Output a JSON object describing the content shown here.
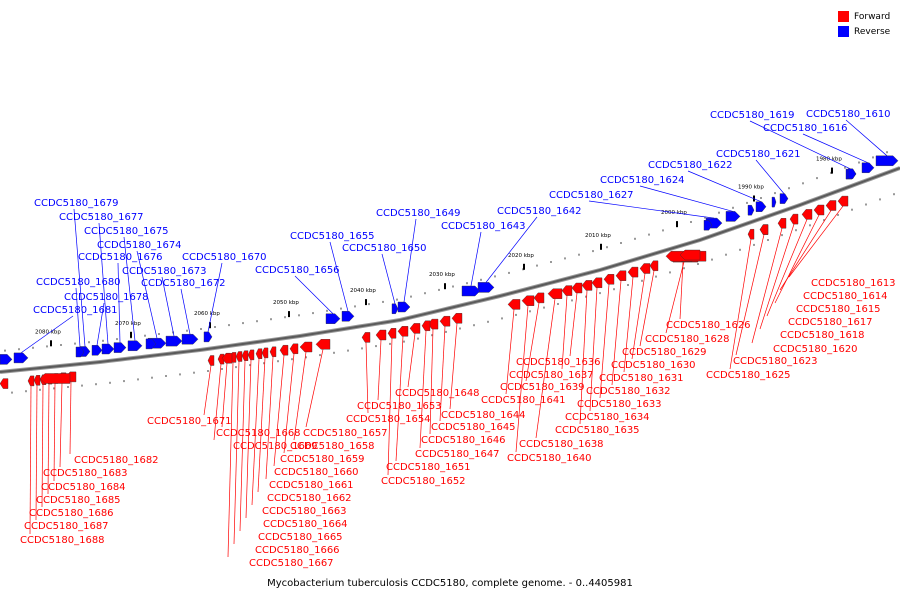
{
  "legend": {
    "forward_label": "Forward",
    "reverse_label": "Reverse",
    "forward_color": "#ff0000",
    "reverse_color": "#0000ff"
  },
  "caption": "Mycobacterium tuberculosis CCDC5180, complete genome. - 0..4405981",
  "ticks": [
    "1980 kbp",
    "1990 kbp",
    "2000 kbp",
    "2010 kbp",
    "2020 kbp",
    "2030 kbp",
    "2040 kbp",
    "2050 kbp",
    "2060 kbp",
    "2070 kbp",
    "2080 kbp"
  ],
  "reverse_genes": [
    "CCDC5180_1610",
    "CCDC5180_1616",
    "CCDC5180_1619",
    "CCDC5180_1621",
    "CCDC5180_1622",
    "CCDC5180_1624",
    "CCDC5180_1627",
    "CCDC5180_1642",
    "CCDC5180_1643",
    "CCDC5180_1649",
    "CCDC5180_1650",
    "CCDC5180_1655",
    "CCDC5180_1656",
    "CCDC5180_1670",
    "CCDC5180_1672",
    "CCDC5180_1673",
    "CCDC5180_1674",
    "CCDC5180_1675",
    "CCDC5180_1676",
    "CCDC5180_1677",
    "CCDC5180_1678",
    "CCDC5180_1679",
    "CCDC5180_1680",
    "CCDC5180_1681"
  ],
  "forward_genes": [
    "CCDC5180_1613",
    "CCDC5180_1614",
    "CCDC5180_1615",
    "CCDC5180_1617",
    "CCDC5180_1618",
    "CCDC5180_1620",
    "CCDC5180_1623",
    "CCDC5180_1625",
    "CCDC5180_1626",
    "CCDC5180_1628",
    "CCDC5180_1629",
    "CCDC5180_1630",
    "CCDC5180_1631",
    "CCDC5180_1632",
    "CCDC5180_1633",
    "CCDC5180_1634",
    "CCDC5180_1635",
    "CCDC5180_1636",
    "CCDC5180_1637",
    "CCDC5180_1638",
    "CCDC5180_1639",
    "CCDC5180_1640",
    "CCDC5180_1641",
    "CCDC5180_1644",
    "CCDC5180_1645",
    "CCDC5180_1646",
    "CCDC5180_1647",
    "CCDC5180_1648",
    "CCDC5180_1651",
    "CCDC5180_1652",
    "CCDC5180_1653",
    "CCDC5180_1654",
    "CCDC5180_1657",
    "CCDC5180_1658",
    "CCDC5180_1659",
    "CCDC5180_1660",
    "CCDC5180_1661",
    "CCDC5180_1662",
    "CCDC5180_1663",
    "CCDC5180_1664",
    "CCDC5180_1665",
    "CCDC5180_1666",
    "CCDC5180_1667",
    "CCDC5180_1668",
    "CCDC5180_1669",
    "CCDC5180_1671",
    "CCDC5180_1682",
    "CCDC5180_1683",
    "CCDC5180_1684",
    "CCDC5180_1685",
    "CCDC5180_1686",
    "CCDC5180_1687",
    "CCDC5180_1688"
  ]
}
